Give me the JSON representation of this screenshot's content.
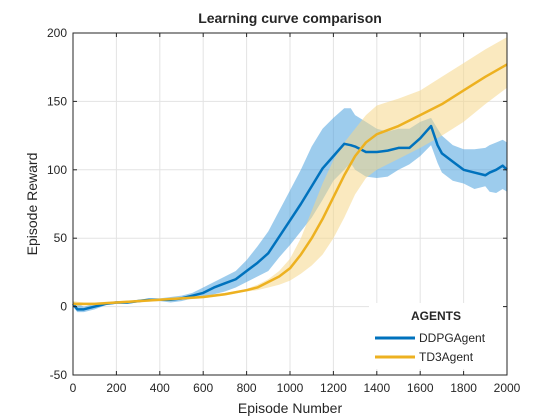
{
  "chart_data": {
    "type": "line",
    "title": "Learning curve comparison",
    "xlabel": "Episode Number",
    "ylabel": "Episode Reward",
    "xlim": [
      0,
      2000
    ],
    "ylim": [
      -50,
      200
    ],
    "xticks": [
      0,
      200,
      400,
      600,
      800,
      1000,
      1200,
      1400,
      1600,
      1800,
      2000
    ],
    "yticks": [
      -50,
      0,
      50,
      100,
      150,
      200
    ],
    "grid": true,
    "legend": {
      "title": "AGENTS",
      "position": "bottom-right"
    },
    "series": [
      {
        "name": "DDPGAgent",
        "color": "#0072BD",
        "band_color": "#4DA3DE",
        "x": [
          0,
          20,
          50,
          100,
          150,
          200,
          250,
          300,
          350,
          400,
          450,
          500,
          550,
          600,
          650,
          700,
          750,
          800,
          850,
          900,
          950,
          1000,
          1050,
          1100,
          1150,
          1200,
          1250,
          1280,
          1300,
          1350,
          1400,
          1450,
          1500,
          1550,
          1600,
          1650,
          1680,
          1700,
          1750,
          1800,
          1850,
          1900,
          1920,
          1950,
          1980,
          2000
        ],
        "y": [
          2,
          -2,
          -2,
          0,
          2,
          3,
          3,
          4,
          5,
          5,
          5,
          6,
          8,
          10,
          14,
          17,
          20,
          26,
          32,
          39,
          51,
          63,
          75,
          88,
          101,
          110,
          119,
          118,
          117,
          113,
          113,
          114,
          116,
          116,
          123,
          132,
          118,
          112,
          106,
          100,
          98,
          96,
          98,
          100,
          103,
          100
        ],
        "upper": [
          4,
          2,
          0,
          2,
          3,
          4,
          4,
          5,
          6,
          6,
          7,
          8,
          10,
          14,
          18,
          22,
          26,
          34,
          44,
          55,
          70,
          85,
          100,
          117,
          130,
          138,
          145,
          145,
          140,
          135,
          130,
          128,
          130,
          130,
          135,
          138,
          130,
          125,
          118,
          115,
          115,
          116,
          118,
          120,
          122,
          120
        ],
        "lower": [
          0,
          -4,
          -4,
          -2,
          1,
          2,
          2,
          3,
          4,
          4,
          3,
          4,
          6,
          7,
          9,
          11,
          14,
          18,
          22,
          26,
          36,
          45,
          55,
          65,
          78,
          92,
          100,
          105,
          100,
          95,
          94,
          95,
          100,
          104,
          110,
          118,
          105,
          98,
          92,
          90,
          86,
          88,
          84,
          83,
          86,
          84
        ]
      },
      {
        "name": "TD3Agent",
        "color": "#EDB120",
        "band_color": "#F5D78A",
        "x": [
          0,
          50,
          100,
          200,
          300,
          400,
          500,
          600,
          700,
          800,
          850,
          900,
          950,
          1000,
          1050,
          1100,
          1150,
          1200,
          1250,
          1300,
          1350,
          1400,
          1500,
          1600,
          1700,
          1800,
          1900,
          2000
        ],
        "y": [
          2,
          2,
          2,
          3,
          4,
          5,
          6,
          7,
          9,
          12,
          14,
          18,
          22,
          28,
          38,
          50,
          64,
          80,
          96,
          110,
          120,
          126,
          132,
          140,
          148,
          158,
          168,
          177
        ],
        "upper": [
          4,
          3,
          3,
          4,
          5,
          6,
          7,
          8,
          10,
          13,
          16,
          20,
          26,
          35,
          50,
          70,
          90,
          107,
          120,
          130,
          140,
          147,
          152,
          158,
          168,
          178,
          188,
          197
        ],
        "lower": [
          0,
          1,
          1,
          2,
          3,
          4,
          5,
          6,
          8,
          11,
          12,
          14,
          16,
          19,
          24,
          30,
          38,
          50,
          65,
          82,
          94,
          100,
          108,
          116,
          125,
          135,
          148,
          160
        ]
      }
    ]
  }
}
